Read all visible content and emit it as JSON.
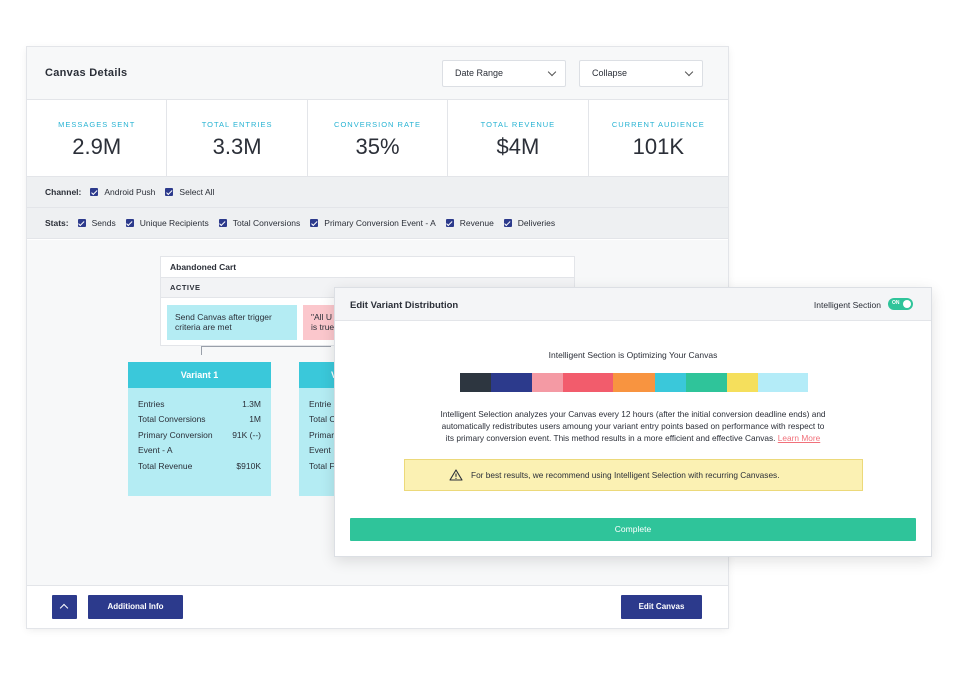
{
  "header": {
    "title": "Canvas Details",
    "date_range": "Date Range",
    "collapse": "Collapse"
  },
  "stats": [
    {
      "label": "MESSAGES SENT",
      "value": "2.9M"
    },
    {
      "label": "TOTAL ENTRIES",
      "value": "3.3M"
    },
    {
      "label": "CONVERSION RATE",
      "value": "35%"
    },
    {
      "label": "TOTAL REVENUE",
      "value": "$4M"
    },
    {
      "label": "CURRENT AUDIENCE",
      "value": "101K"
    }
  ],
  "channel": {
    "label": "Channel:",
    "options": [
      "Android Push",
      "Select All"
    ]
  },
  "stats_filter": {
    "label": "Stats:",
    "options": [
      "Sends",
      "Unique Recipients",
      "Total Conversions",
      "Primary Conversion Event - A",
      "Revenue",
      "Deliveries"
    ]
  },
  "node": {
    "title": "Abandoned Cart",
    "status": "ACTIVE",
    "step1_line1": "Send Canvas after trigger",
    "step1_line2": "criteria are met",
    "step2_line1": "\"All U",
    "step2_line2": "is true"
  },
  "variant1": {
    "title": "Variant 1",
    "rows": [
      {
        "label": "Entries",
        "value": "1.3M"
      },
      {
        "label": "Total Conversions",
        "value": "1M"
      },
      {
        "label": "Primary Conversion",
        "value": "91K (--)"
      },
      {
        "label": "Event - A",
        "value": ""
      },
      {
        "label": "Total Revenue",
        "value": "$910K"
      }
    ]
  },
  "variant2": {
    "title": "V",
    "rows": [
      "Entrie",
      "Total C",
      "Primar",
      "Event",
      "Total F"
    ]
  },
  "footer": {
    "additional_info": "Additional Info",
    "edit_canvas": "Edit Canvas"
  },
  "modal": {
    "title": "Edit Variant Distribution",
    "toggle_label": "Intelligent Section",
    "toggle_state": "ON",
    "heading": "Intelligent Section is Optimizing Your Canvas",
    "desc_line1": "Intelligent Selection analyzes your Canvas every 12 hours (after the initial conversion deadline ends) and",
    "desc_line2": "automatically redistributes users amoung your variant entry points based on performance with respect to",
    "desc_line3": "its primary conversion event. This method results in a more efficient and effective Canvas.",
    "learn_more": "Learn More",
    "warning": "For best results, we recommend using Intelligent Selection with recurring Canvases.",
    "complete": "Complete",
    "distribution_colors": [
      "#2d3640",
      "#2c3a8c",
      "#f49aa4",
      "#f25c6c",
      "#f89440",
      "#3ac8da",
      "#2fc49a",
      "#f5df5c",
      "#b4ecf8"
    ],
    "distribution_shares": [
      0.09,
      0.12,
      0.09,
      0.145,
      0.12,
      0.09,
      0.12,
      0.09,
      0.145
    ]
  }
}
